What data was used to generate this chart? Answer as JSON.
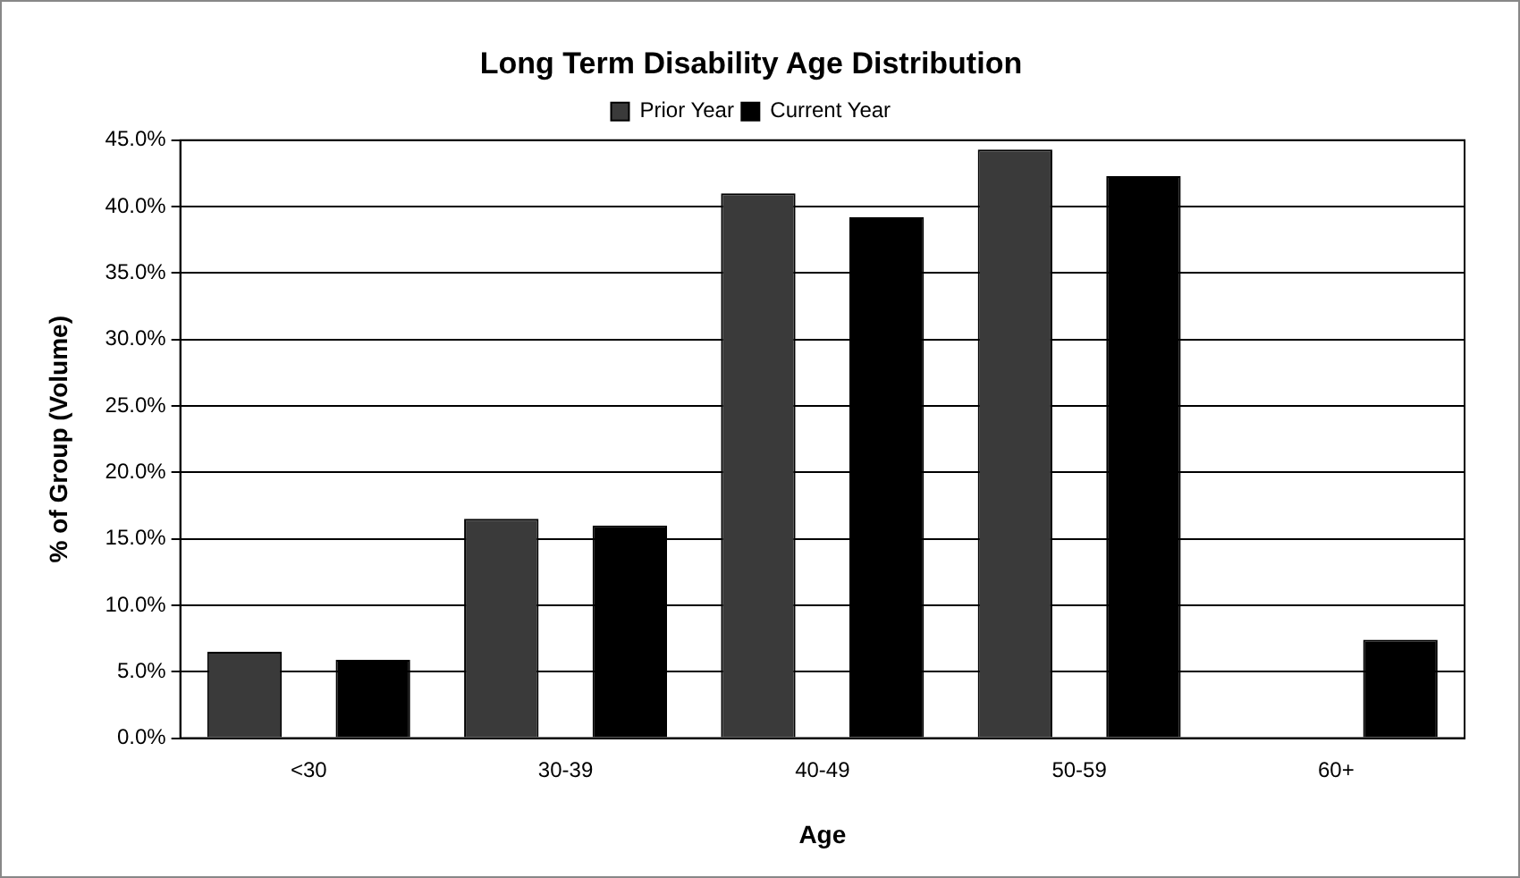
{
  "chart_data": {
    "type": "bar",
    "title": "Long Term Disability Age Distribution",
    "xlabel": "Age",
    "ylabel": "% of Group (Volume)",
    "categories": [
      "<30",
      "30-39",
      "40-49",
      "50-59",
      "60+"
    ],
    "series": [
      {
        "name": "Prior Year",
        "color": "#3a3a3a",
        "values": [
          6.5,
          16.5,
          41.0,
          44.3,
          0
        ]
      },
      {
        "name": "Current Year",
        "color": "#000000",
        "values": [
          5.9,
          16.0,
          39.2,
          42.3,
          7.4
        ]
      }
    ],
    "ylim": [
      0,
      45
    ],
    "yticks": [
      {
        "value": 0,
        "label": "0.0%"
      },
      {
        "value": 5,
        "label": "5.0%"
      },
      {
        "value": 10,
        "label": "10.0%"
      },
      {
        "value": 15,
        "label": "15.0%"
      },
      {
        "value": 20,
        "label": "20.0%"
      },
      {
        "value": 25,
        "label": "25.0%"
      },
      {
        "value": 30,
        "label": "30.0%"
      },
      {
        "value": 35,
        "label": "35.0%"
      },
      {
        "value": 40,
        "label": "40.0%"
      },
      {
        "value": 45,
        "label": "45.0%"
      }
    ],
    "grid": "y",
    "legend": "top"
  }
}
